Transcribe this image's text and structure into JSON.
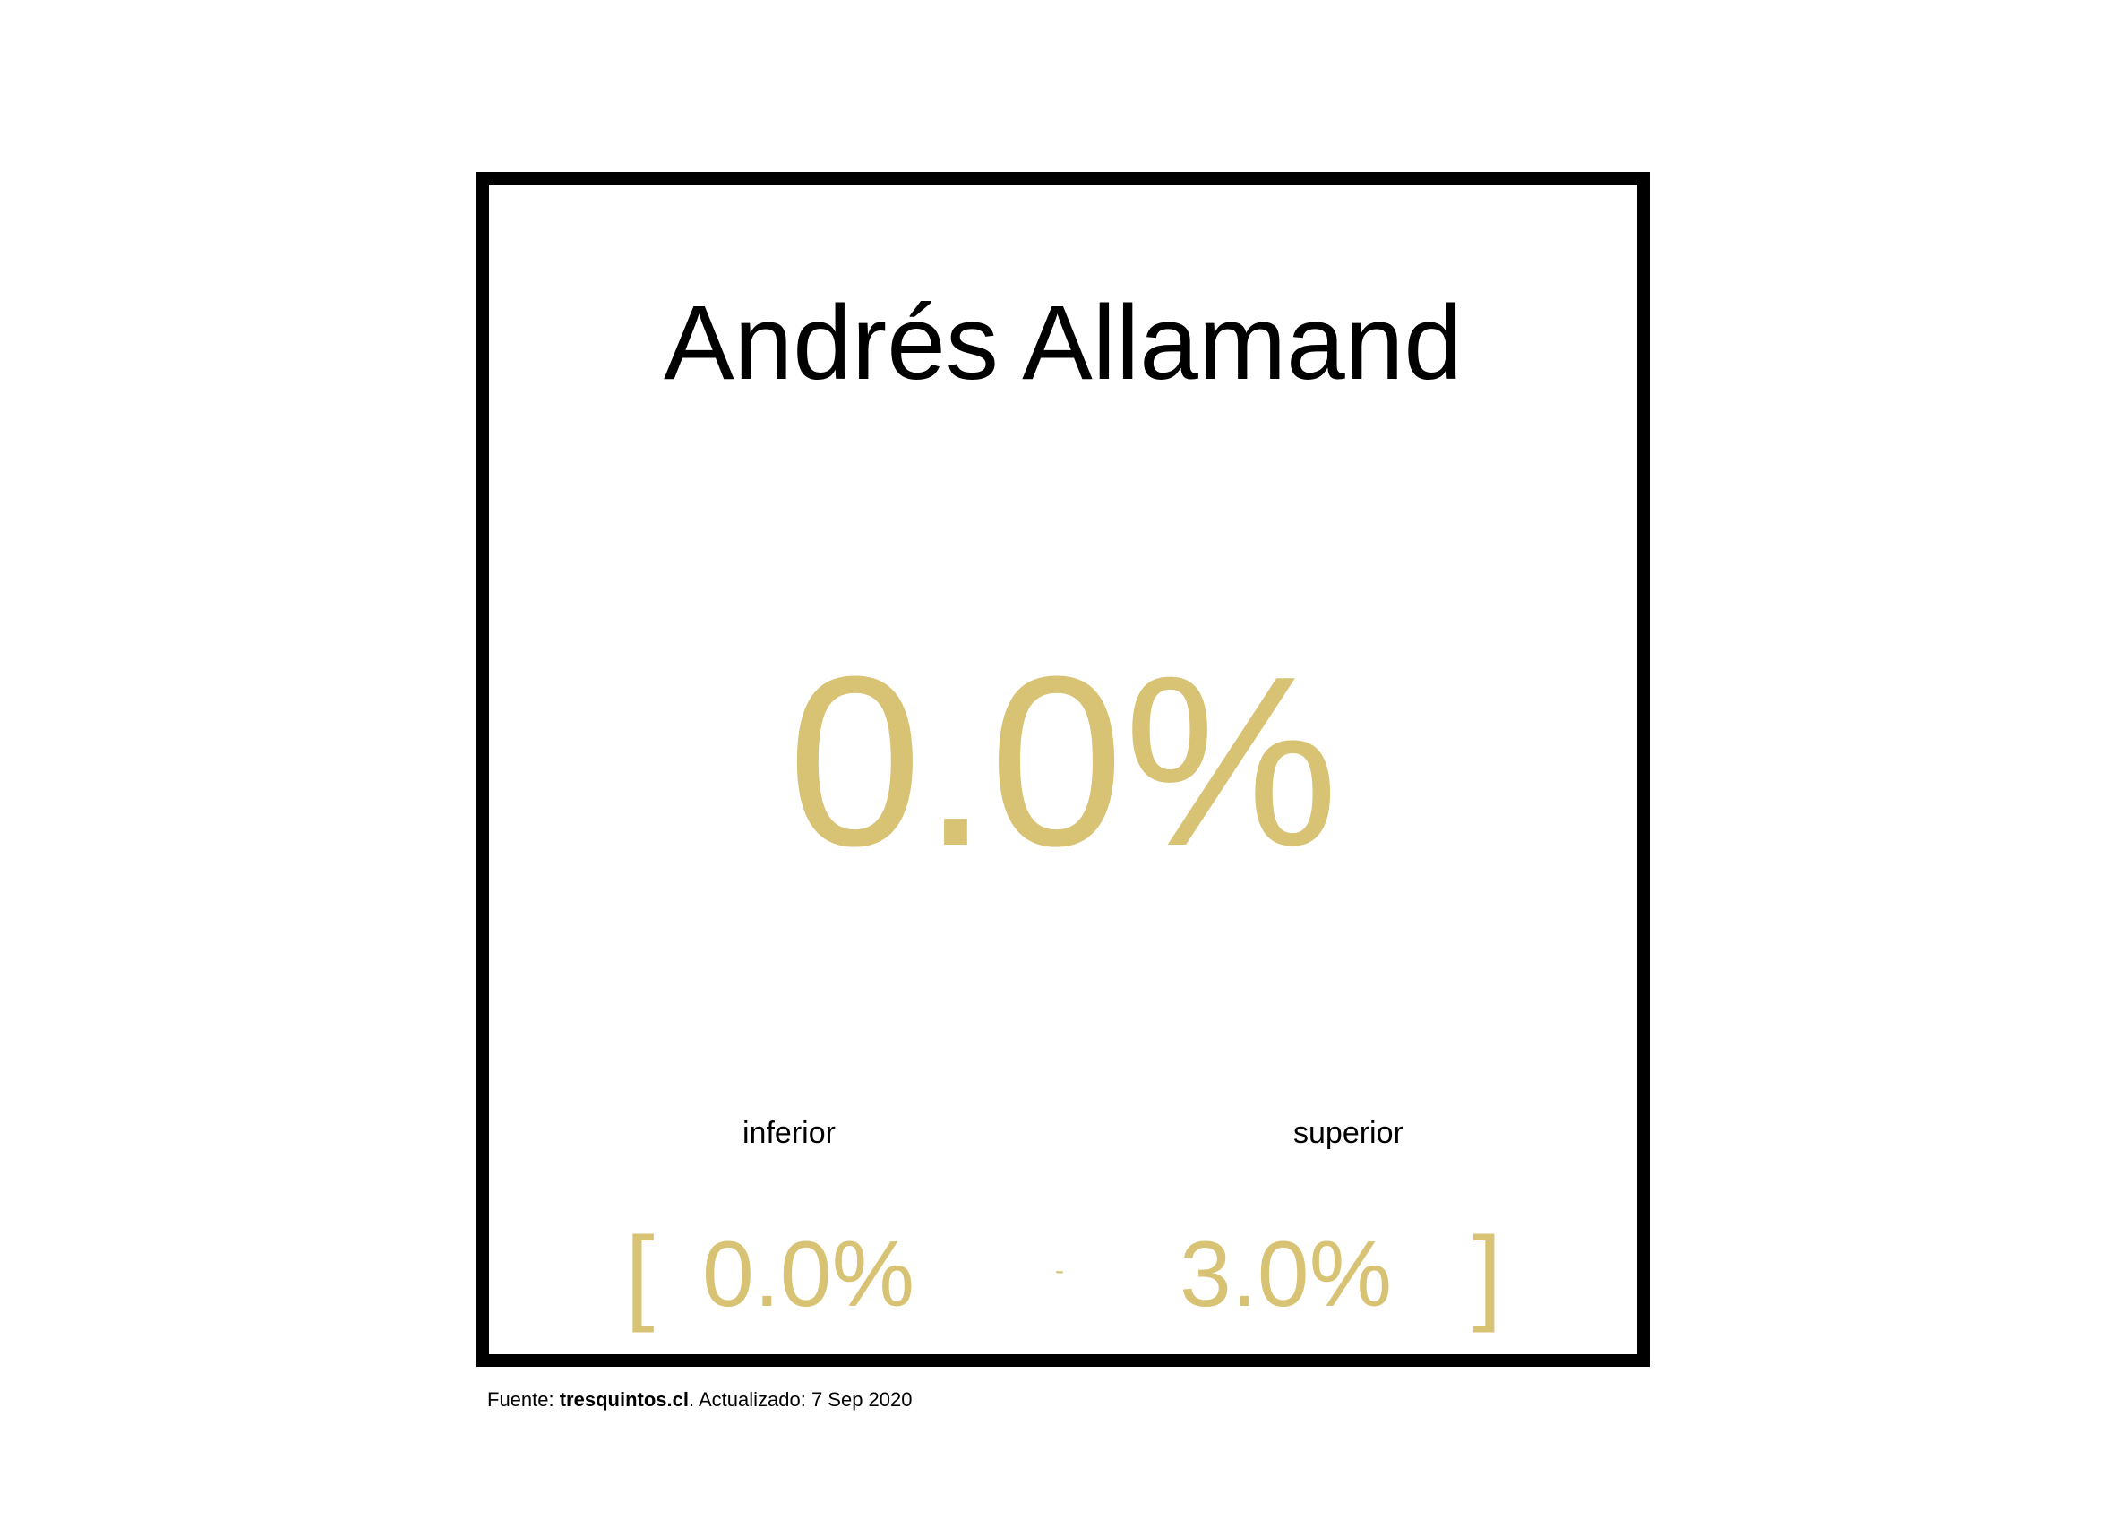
{
  "colors": {
    "accent": "#d8c274",
    "frame": "#000000",
    "text": "#000000",
    "background": "#ffffff"
  },
  "card": {
    "name": "Andrés Allamand",
    "main_value": "0.0%",
    "range": {
      "inferior_label": "inferior",
      "superior_label": "superior",
      "bracket_open": "[",
      "bracket_close": "]",
      "lower_value": "0.0%",
      "separator": "-",
      "upper_value": "3.0%"
    }
  },
  "footer": {
    "prefix": "Fuente: ",
    "source": "tresquintos.cl",
    "updated": ". Actualizado: 7 Sep 2020"
  }
}
